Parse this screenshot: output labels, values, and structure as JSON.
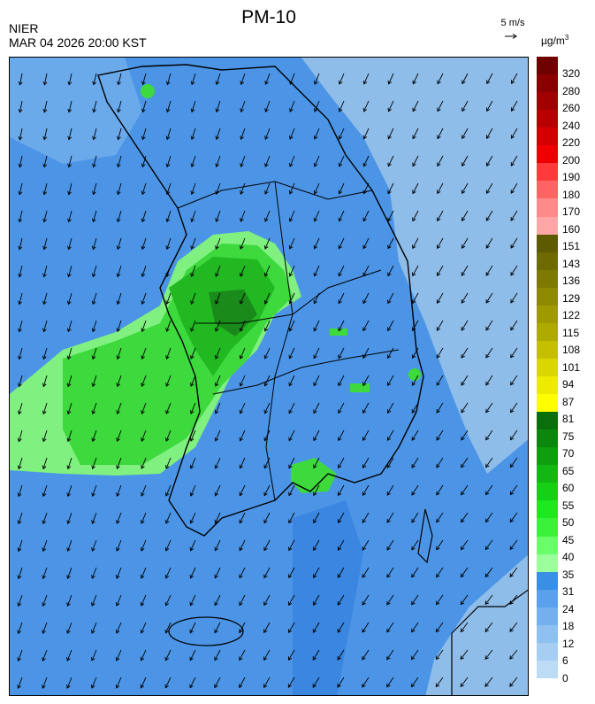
{
  "header": {
    "title": "PM-10",
    "agency": "NIER",
    "datetime": "MAR 04 2026 20:00 KST",
    "wind_reference": "5 m/s",
    "unit_base": "µg/m",
    "unit_exp": "3"
  },
  "legend": {
    "labels": [
      "320",
      "280",
      "260",
      "240",
      "220",
      "200",
      "190",
      "180",
      "170",
      "160",
      "151",
      "143",
      "136",
      "129",
      "122",
      "115",
      "108",
      "101",
      "94",
      "87",
      "81",
      "75",
      "70",
      "65",
      "60",
      "55",
      "50",
      "45",
      "40",
      "35",
      "31",
      "24",
      "18",
      "12",
      "6",
      "0"
    ],
    "colors": [
      "#6e0000",
      "#8a0000",
      "#a00000",
      "#b80000",
      "#d20000",
      "#ee0000",
      "#ff3a3a",
      "#ff6464",
      "#ff8a8a",
      "#ffa6a6",
      "#5e5a00",
      "#6e6a00",
      "#7e7a00",
      "#8e8a00",
      "#9e9a00",
      "#aeaa00",
      "#c4c000",
      "#dad600",
      "#eeea00",
      "#ffff00",
      "#0a6e0a",
      "#0c860c",
      "#0e9e0e",
      "#12b812",
      "#16d016",
      "#1ee81e",
      "#3af23a",
      "#6aff6a",
      "#9cff9c",
      "#3a8ee6",
      "#5aa0ea",
      "#74b0ee",
      "#8ec0f0",
      "#a6cef2",
      "#bcdcf6"
    ]
  },
  "colors": {
    "low_blue": "#4c95e6",
    "pale_blue": "#8fbde9",
    "deep_blue": "#3a86e0",
    "green": "#3dd93d",
    "mid_green": "#22b822",
    "dark_green": "#1a8a1a",
    "light_green": "#80f080",
    "coast": "#000000",
    "boundary": "#bbbbbb"
  }
}
